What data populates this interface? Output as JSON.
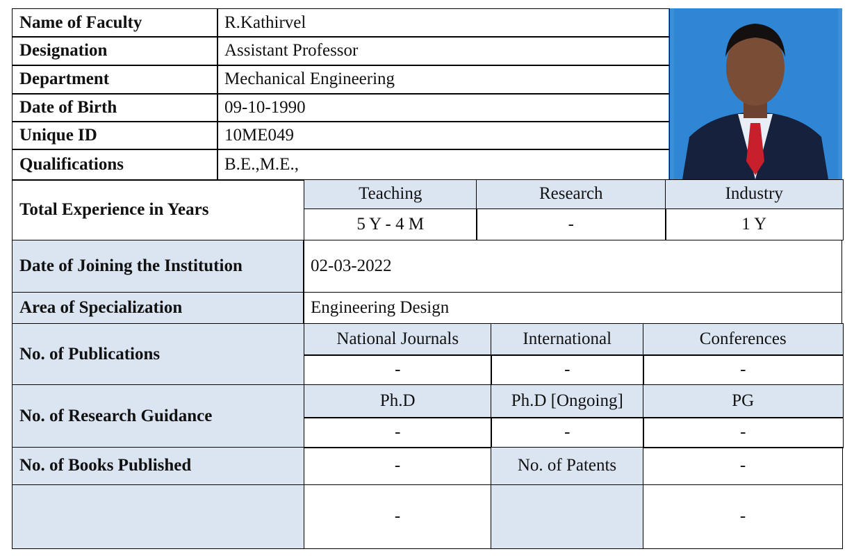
{
  "profile": {
    "rows": [
      {
        "label": "Name of Faculty",
        "value": "R.Kathirvel"
      },
      {
        "label": "Designation",
        "value": "Assistant Professor"
      },
      {
        "label": "Department",
        "value": "Mechanical Engineering"
      },
      {
        "label": "Date of Birth",
        "value": "09-10-1990"
      },
      {
        "label": "Unique ID",
        "value": "10ME049"
      },
      {
        "label": "Qualifications",
        "value": "B.E.,M.E.,"
      }
    ]
  },
  "experience": {
    "label": "Total Experience in Years",
    "headers": [
      "Teaching",
      "Research",
      "Industry"
    ],
    "values": [
      "5 Y - 4 M",
      "-",
      "1 Y"
    ]
  },
  "joining": {
    "label": "Date of Joining the Institution",
    "value": "02-03-2022"
  },
  "specialization": {
    "label": "Area of Specialization",
    "value": "Engineering Design"
  },
  "publications": {
    "label": "No. of  Publications",
    "headers": [
      "National Journals",
      "International",
      "Conferences"
    ],
    "values": [
      "-",
      "-",
      "-"
    ]
  },
  "guidance": {
    "label": "No. of Research Guidance",
    "headers": [
      "Ph.D",
      "Ph.D [Ongoing]",
      "PG"
    ],
    "values": [
      "-",
      "-",
      "-"
    ]
  },
  "books": {
    "label": "No. of Books Published",
    "value": "-",
    "patents_label": "No. of Patents",
    "patents_value": "-"
  },
  "extra": {
    "values": [
      "-",
      "-"
    ]
  }
}
